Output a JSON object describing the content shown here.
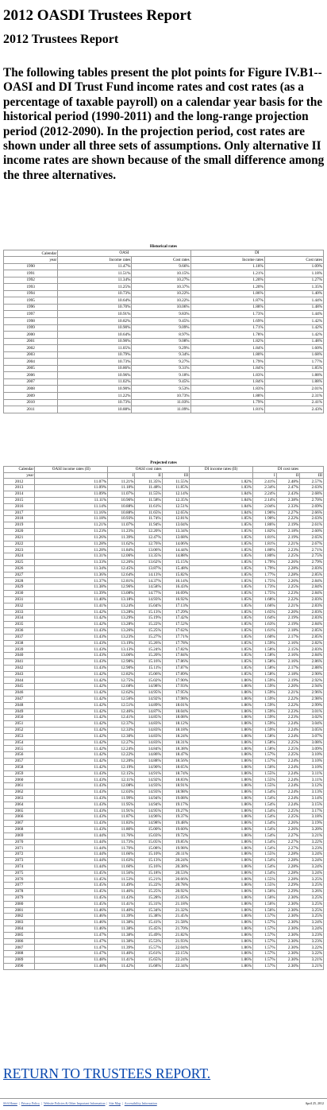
{
  "header": {
    "title": "2012 OASDI Trustees Report",
    "subtitle": "2012 Trustees Report"
  },
  "intro": "The following tables present the plot points for Figure IV.B1--OASI and DI Trust Fund income rates and cost rates (as a percentage of taxable payroll) on a calendar year basis for the historical period (1990-2011) and the long-range projection period (2012-2090). In the projection period, cost rates are shown under all three sets of assumptions. Only alternative II income rates are shown because of the small difference among the three alternatives.",
  "historical": {
    "caption": "Historical rates",
    "head": [
      "Calendar",
      "OASI",
      "DI"
    ],
    "sub": [
      "year",
      "Income rates",
      "Cost rates",
      "Income rates",
      "Cost rates"
    ],
    "rows": [
      [
        "1990",
        "11.47%",
        "9.66%",
        "1.18%",
        "1.09%"
      ],
      [
        "1991",
        "11.51%",
        "10.15%",
        "1.21%",
        "1.18%"
      ],
      [
        "1992",
        "11.34%",
        "10.27%",
        "1.20%",
        "1.27%"
      ],
      [
        "1993",
        "11.25%",
        "10.37%",
        "1.20%",
        "1.35%"
      ],
      [
        "1994",
        "10.73%",
        "10.22%",
        "1.86%",
        "1.40%"
      ],
      [
        "1995",
        "10.64%",
        "10.22%",
        "1.87%",
        "1.44%"
      ],
      [
        "1996",
        "10.70%",
        "10.06%",
        "1.88%",
        "1.48%"
      ],
      [
        "1997",
        "10.91%",
        "9.83%",
        "1.73%",
        "1.44%"
      ],
      [
        "1998",
        "10.82%",
        "9.45%",
        "1.69%",
        "1.42%"
      ],
      [
        "1999",
        "10.90%",
        "9.09%",
        "1.71%",
        "1.42%"
      ],
      [
        "2000",
        "10.64%",
        "8.97%",
        "1.78%",
        "1.42%"
      ],
      [
        "2001",
        "10.90%",
        "9.08%",
        "1.82%",
        "1.48%"
      ],
      [
        "2002",
        "11.05%",
        "9.29%",
        "1.84%",
        "1.60%"
      ],
      [
        "2003",
        "10.79%",
        "9.34%",
        "1.80%",
        "1.68%"
      ],
      [
        "2004",
        "10.73%",
        "9.27%",
        "1.79%",
        "1.77%"
      ],
      [
        "2005",
        "10.86%",
        "9.31%",
        "1.84%",
        "1.85%"
      ],
      [
        "2006",
        "10.96%",
        "9.18%",
        "1.83%",
        "1.88%"
      ],
      [
        "2007",
        "11.02%",
        "9.45%",
        "1.84%",
        "1.88%"
      ],
      [
        "2008",
        "10.90%",
        "9.53%",
        "1.83%",
        "2.01%"
      ],
      [
        "2009",
        "11.22%",
        "10.73%",
        "1.88%",
        "2.31%"
      ],
      [
        "2010",
        "10.73%",
        "11.03%",
        "1.79%",
        "2.41%"
      ],
      [
        "2011",
        "10.88%",
        "11.09%",
        "1.81%",
        "2.43%"
      ]
    ]
  },
  "projected": {
    "caption": "Projected rates",
    "head": [
      "OASI income rates (II)",
      "OASI cost rates",
      "DI income rates (II)",
      "DI cost rates"
    ],
    "calendar": [
      "Calendar",
      "year"
    ],
    "sub": [
      "I",
      "II",
      "III",
      "I",
      "II",
      "III"
    ],
    "rows": [
      [
        "2012",
        "11.07%",
        "11.21%",
        "11.35%",
        "11.55%",
        "1.82%",
        "2.41%",
        "2.48%",
        "2.57%"
      ],
      [
        "2013",
        "11.09%",
        "11.18%",
        "11.48%",
        "11.85%",
        "1.83%",
        "2.34%",
        "2.47%",
        "2.63%"
      ],
      [
        "2014",
        "11.09%",
        "11.07%",
        "11.55%",
        "12.14%",
        "1.84%",
        "2.24%",
        "2.43%",
        "2.68%"
      ],
      [
        "2015",
        "11.11%",
        "10.96%",
        "11.58%",
        "12.35%",
        "1.84%",
        "2.14%",
        "2.38%",
        "2.70%"
      ],
      [
        "2016",
        "11.14%",
        "10.88%",
        "11.61%",
        "12.51%",
        "1.84%",
        "2.04%",
        "2.33%",
        "2.69%"
      ],
      [
        "2017",
        "11.16%",
        "10.88%",
        "11.65%",
        "12.65%",
        "1.84%",
        "1.96%",
        "2.27%",
        "2.66%"
      ],
      [
        "2018",
        "11.18%",
        "10.93%",
        "11.74%",
        "12.81%",
        "1.85%",
        "1.90%",
        "2.22%",
        "2.63%"
      ],
      [
        "2019",
        "11.21%",
        "11.07%",
        "11.94%",
        "13.04%",
        "1.85%",
        "1.86%",
        "2.19%",
        "2.61%"
      ],
      [
        "2020",
        "11.23%",
        "11.23%",
        "12.20%",
        "13.34%",
        "1.85%",
        "1.82%",
        "2.18%",
        "2.60%"
      ],
      [
        "2021",
        "11.26%",
        "11.39%",
        "12.47%",
        "13.68%",
        "1.85%",
        "1.81%",
        "2.19%",
        "2.65%"
      ],
      [
        "2022",
        "11.28%",
        "11.62%",
        "12.76%",
        "14.06%",
        "1.85%",
        "1.81%",
        "2.21%",
        "2.67%"
      ],
      [
        "2023",
        "11.28%",
        "11.84%",
        "13.06%",
        "14.44%",
        "1.85%",
        "1.80%",
        "2.23%",
        "2.71%"
      ],
      [
        "2024",
        "11.31%",
        "12.06%",
        "13.35%",
        "14.88%",
        "1.85%",
        "1.80%",
        "2.25%",
        "2.75%"
      ],
      [
        "2025",
        "11.33%",
        "12.26%",
        "13.62%",
        "15.15%",
        "1.85%",
        "1.79%",
        "2.26%",
        "2.79%"
      ],
      [
        "2026",
        "11.34%",
        "12.45%",
        "13.87%",
        "15.48%",
        "1.85%",
        "1.79%",
        "2.28%",
        "2.83%"
      ],
      [
        "2027",
        "11.36%",
        "12.64%",
        "14.13%",
        "15.82%",
        "1.85%",
        "1.77%",
        "2.28%",
        "2.85%"
      ],
      [
        "2028",
        "11.37%",
        "12.81%",
        "14.37%",
        "16.14%",
        "1.85%",
        "1.75%",
        "2.26%",
        "2.84%"
      ],
      [
        "2029",
        "11.38%",
        "12.96%",
        "14.58%",
        "16.43%",
        "1.85%",
        "1.73%",
        "2.25%",
        "2.84%"
      ],
      [
        "2030",
        "11.39%",
        "13.08%",
        "14.77%",
        "16.69%",
        "1.85%",
        "1.75%",
        "2.23%",
        "2.84%"
      ],
      [
        "2031",
        "11.40%",
        "13.18%",
        "14.93%",
        "16.92%",
        "1.85%",
        "1.68%",
        "2.22%",
        "2.83%"
      ],
      [
        "2032",
        "11.41%",
        "13.24%",
        "15.04%",
        "17.13%",
        "1.85%",
        "1.66%",
        "2.21%",
        "2.83%"
      ],
      [
        "2033",
        "11.42%",
        "13.28%",
        "15.13%",
        "17.29%",
        "1.85%",
        "1.65%",
        "2.20%",
        "2.83%"
      ],
      [
        "2034",
        "11.42%",
        "13.29%",
        "15.19%",
        "17.42%",
        "1.85%",
        "1.64%",
        "2.19%",
        "2.83%"
      ],
      [
        "2035",
        "11.42%",
        "13.28%",
        "15.22%",
        "17.52%",
        "1.85%",
        "1.63%",
        "2.19%",
        "2.84%"
      ],
      [
        "2036",
        "11.43%",
        "13.26%",
        "15.25%",
        "17.62%",
        "1.85%",
        "1.61%",
        "2.18%",
        "2.85%"
      ],
      [
        "2037",
        "11.43%",
        "13.23%",
        "15.27%",
        "17.71%",
        "1.85%",
        "1.60%",
        "2.17%",
        "2.85%"
      ],
      [
        "2038",
        "11.43%",
        "13.19%",
        "15.26%",
        "17.78%",
        "1.85%",
        "1.59%",
        "2.16%",
        "2.82%"
      ],
      [
        "2039",
        "11.43%",
        "13.13%",
        "15.24%",
        "17.82%",
        "1.85%",
        "1.58%",
        "2.15%",
        "2.83%"
      ],
      [
        "2040",
        "11.43%",
        "13.06%",
        "15.20%",
        "17.84%",
        "1.85%",
        "1.58%",
        "2.16%",
        "2.84%"
      ],
      [
        "2041",
        "11.43%",
        "12.98%",
        "15.16%",
        "17.86%",
        "1.85%",
        "1.58%",
        "2.16%",
        "2.86%"
      ],
      [
        "2042",
        "11.43%",
        "12.90%",
        "15.11%",
        "17.87%",
        "1.85%",
        "1.58%",
        "2.17%",
        "2.88%"
      ],
      [
        "2043",
        "11.42%",
        "12.82%",
        "15.06%",
        "17.89%",
        "1.85%",
        "1.58%",
        "2.18%",
        "2.90%"
      ],
      [
        "2044",
        "11.42%",
        "12.75%",
        "15.02%",
        "17.90%",
        "1.86%",
        "1.59%",
        "2.19%",
        "2.92%"
      ],
      [
        "2045",
        "11.42%",
        "12.68%",
        "14.98%",
        "17.93%",
        "1.86%",
        "1.59%",
        "2.20%",
        "2.94%"
      ],
      [
        "2046",
        "11.42%",
        "12.62%",
        "14.95%",
        "17.95%",
        "1.86%",
        "1.59%",
        "2.21%",
        "2.96%"
      ],
      [
        "2047",
        "11.42%",
        "12.56%",
        "14.92%",
        "17.98%",
        "1.86%",
        "1.59%",
        "2.22%",
        "2.98%"
      ],
      [
        "2048",
        "11.42%",
        "12.51%",
        "14.89%",
        "18.01%",
        "1.86%",
        "1.59%",
        "2.22%",
        "2.99%"
      ],
      [
        "2049",
        "11.42%",
        "12.46%",
        "14.87%",
        "18.04%",
        "1.86%",
        "1.59%",
        "2.23%",
        "3.01%"
      ],
      [
        "2050",
        "11.42%",
        "12.41%",
        "14.85%",
        "18.08%",
        "1.86%",
        "1.59%",
        "2.23%",
        "3.02%"
      ],
      [
        "2051",
        "11.42%",
        "12.37%",
        "14.83%",
        "18.12%",
        "1.86%",
        "1.59%",
        "2.24%",
        "3.04%"
      ],
      [
        "2052",
        "11.42%",
        "12.33%",
        "14.83%",
        "18.18%",
        "1.86%",
        "1.59%",
        "2.24%",
        "3.05%"
      ],
      [
        "2053",
        "11.42%",
        "12.30%",
        "14.83%",
        "18.24%",
        "1.86%",
        "1.58%",
        "2.24%",
        "3.07%"
      ],
      [
        "2054",
        "11.42%",
        "12.27%",
        "14.83%",
        "18.31%",
        "1.86%",
        "1.58%",
        "2.25%",
        "3.08%"
      ],
      [
        "2055",
        "11.42%",
        "12.24%",
        "14.84%",
        "18.38%",
        "1.86%",
        "1.58%",
        "2.25%",
        "3.09%"
      ],
      [
        "2056",
        "11.42%",
        "12.22%",
        "14.86%",
        "18.47%",
        "1.86%",
        "1.57%",
        "2.25%",
        "3.10%"
      ],
      [
        "2057",
        "11.42%",
        "12.20%",
        "14.88%",
        "18.56%",
        "1.86%",
        "1.57%",
        "2.24%",
        "3.10%"
      ],
      [
        "2058",
        "11.42%",
        "12.19%",
        "14.90%",
        "18.65%",
        "1.86%",
        "1.56%",
        "2.24%",
        "3.10%"
      ],
      [
        "2059",
        "11.43%",
        "12.15%",
        "14.91%",
        "18.74%",
        "1.86%",
        "1.55%",
        "2.24%",
        "3.11%"
      ],
      [
        "2060",
        "11.43%",
        "12.11%",
        "14.92%",
        "18.83%",
        "1.86%",
        "1.55%",
        "2.24%",
        "3.11%"
      ],
      [
        "2061",
        "11.43%",
        "12.08%",
        "14.93%",
        "18.91%",
        "1.86%",
        "1.55%",
        "2.24%",
        "3.12%"
      ],
      [
        "2062",
        "11.43%",
        "12.03%",
        "14.93%",
        "18.98%",
        "1.86%",
        "1.54%",
        "2.24%",
        "3.13%"
      ],
      [
        "2063",
        "11.43%",
        "11.99%",
        "14.94%",
        "19.08%",
        "1.86%",
        "1.54%",
        "2.24%",
        "3.14%"
      ],
      [
        "2064",
        "11.43%",
        "11.95%",
        "14.94%",
        "19.17%",
        "1.86%",
        "1.54%",
        "2.24%",
        "3.15%"
      ],
      [
        "2065",
        "11.43%",
        "11.91%",
        "14.95%",
        "19.27%",
        "1.86%",
        "1.54%",
        "2.25%",
        "3.17%"
      ],
      [
        "2066",
        "11.43%",
        "11.87%",
        "14.96%",
        "19.37%",
        "1.86%",
        "1.54%",
        "2.25%",
        "3.18%"
      ],
      [
        "2067",
        "11.43%",
        "11.83%",
        "14.98%",
        "19.48%",
        "1.86%",
        "1.54%",
        "2.26%",
        "3.19%"
      ],
      [
        "2068",
        "11.43%",
        "11.80%",
        "15.00%",
        "19.60%",
        "1.86%",
        "1.54%",
        "2.26%",
        "3.20%"
      ],
      [
        "2069",
        "11.44%",
        "11.76%",
        "15.03%",
        "19.72%",
        "1.86%",
        "1.54%",
        "2.27%",
        "3.21%"
      ],
      [
        "2070",
        "11.44%",
        "11.73%",
        "15.05%",
        "19.85%",
        "1.86%",
        "1.54%",
        "2.27%",
        "3.22%"
      ],
      [
        "2071",
        "11.44%",
        "11.70%",
        "15.08%",
        "19.98%",
        "1.86%",
        "1.54%",
        "2.27%",
        "3.23%"
      ],
      [
        "2072",
        "11.44%",
        "11.66%",
        "15.10%",
        "20.11%",
        "1.86%",
        "1.55%",
        "2.28%",
        "3.24%"
      ],
      [
        "2073",
        "11.44%",
        "11.63%",
        "15.13%",
        "20.24%",
        "1.86%",
        "1.54%",
        "2.28%",
        "3.24%"
      ],
      [
        "2074",
        "11.44%",
        "11.60%",
        "15.16%",
        "20.38%",
        "1.86%",
        "1.54%",
        "2.28%",
        "3.24%"
      ],
      [
        "2075",
        "11.45%",
        "11.56%",
        "15.18%",
        "20.53%",
        "1.86%",
        "1.54%",
        "2.28%",
        "3.24%"
      ],
      [
        "2076",
        "11.45%",
        "11.53%",
        "15.21%",
        "20.66%",
        "1.86%",
        "1.55%",
        "2.28%",
        "3.25%"
      ],
      [
        "2077",
        "11.45%",
        "11.49%",
        "15.22%",
        "20.78%",
        "1.86%",
        "1.55%",
        "2.29%",
        "3.25%"
      ],
      [
        "2078",
        "11.45%",
        "11.46%",
        "15.25%",
        "20.92%",
        "1.86%",
        "1.56%",
        "2.29%",
        "3.26%"
      ],
      [
        "2079",
        "11.45%",
        "11.43%",
        "15.28%",
        "21.05%",
        "1.86%",
        "1.56%",
        "2.30%",
        "3.25%"
      ],
      [
        "2080",
        "11.45%",
        "11.41%",
        "15.31%",
        "21.18%",
        "1.86%",
        "1.56%",
        "2.30%",
        "3.25%"
      ],
      [
        "2081",
        "11.46%",
        "11.40%",
        "15.34%",
        "21.32%",
        "1.86%",
        "1.56%",
        "2.30%",
        "3.25%"
      ],
      [
        "2082",
        "11.46%",
        "11.39%",
        "15.38%",
        "21.45%",
        "1.86%",
        "1.57%",
        "2.30%",
        "3.25%"
      ],
      [
        "2083",
        "11.46%",
        "11.38%",
        "15.41%",
        "21.58%",
        "1.86%",
        "1.57%",
        "2.30%",
        "3.24%"
      ],
      [
        "2084",
        "11.46%",
        "11.38%",
        "15.45%",
        "21.70%",
        "1.86%",
        "1.57%",
        "2.30%",
        "3.24%"
      ],
      [
        "2085",
        "11.47%",
        "11.38%",
        "15.49%",
        "21.82%",
        "1.86%",
        "1.57%",
        "2.30%",
        "3.23%"
      ],
      [
        "2086",
        "11.47%",
        "11.38%",
        "15.53%",
        "21.93%",
        "1.86%",
        "1.57%",
        "2.30%",
        "3.23%"
      ],
      [
        "2087",
        "11.47%",
        "11.39%",
        "15.57%",
        "22.04%",
        "1.86%",
        "1.57%",
        "2.30%",
        "3.22%"
      ],
      [
        "2088",
        "11.47%",
        "11.40%",
        "15.61%",
        "22.15%",
        "1.86%",
        "1.57%",
        "2.30%",
        "3.22%"
      ],
      [
        "2089",
        "11.48%",
        "11.41%",
        "15.65%",
        "22.24%",
        "1.86%",
        "1.57%",
        "2.30%",
        "3.21%"
      ],
      [
        "2090",
        "11.48%",
        "11.42%",
        "15.68%",
        "22.34%",
        "1.86%",
        "1.57%",
        "2.30%",
        "3.21%"
      ]
    ]
  },
  "return_link": "RETURN TO TRUSTEES REPORT.",
  "footer": {
    "links": [
      "SSA Home",
      "Privacy Policy",
      "Website Policies & Other Important Information",
      "Site Map",
      "Accessibility Information"
    ],
    "separator": "|",
    "date": "April 25, 2012"
  },
  "colors": {
    "link": "#0645ad",
    "footer_link": "#2a4fa0",
    "rule": "#999999"
  }
}
